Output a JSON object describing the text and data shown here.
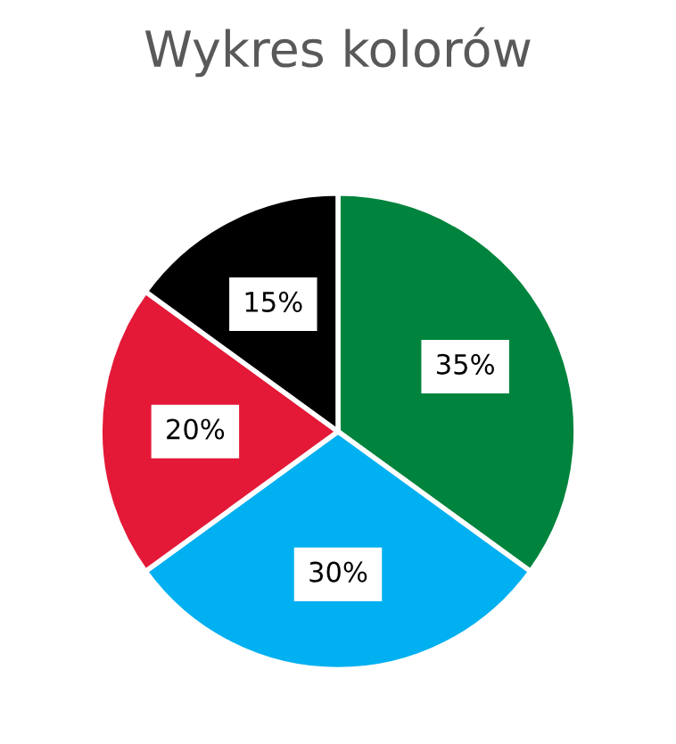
{
  "chart_data": {
    "type": "pie",
    "title": "Wykres kolorów",
    "categories": [
      null,
      null,
      null,
      null
    ],
    "values": [
      35,
      30,
      20,
      15
    ],
    "colors": [
      "#00843d",
      "#00b0f0",
      "#e31937",
      "#000000"
    ],
    "value_labels": [
      "35%",
      "30%",
      "20%",
      "15%"
    ]
  }
}
